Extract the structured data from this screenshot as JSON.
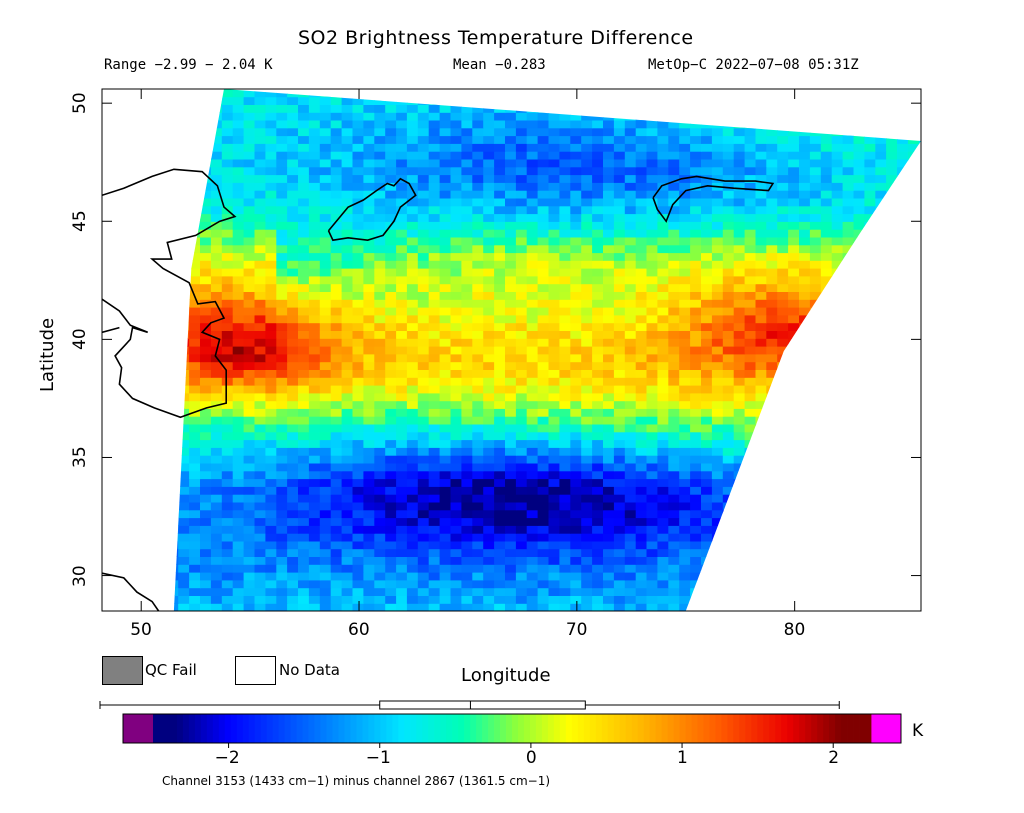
{
  "chart_data": {
    "type": "heatmap",
    "title": "SO2 Brightness Temperature Difference",
    "info": {
      "range": "Range −2.99 − 2.04 K",
      "mean": "Mean −0.283",
      "platform": "MetOp−C 2022−07−08 05:31Z"
    },
    "xlabel": "Longitude",
    "ylabel": "Latitude",
    "xlim": [
      48.2,
      85.8
    ],
    "ylim": [
      28.5,
      50.6
    ],
    "x_ticks": [
      50,
      60,
      70,
      80
    ],
    "x_tick_labels": [
      "50",
      "60",
      "70",
      "80"
    ],
    "y_ticks": [
      30,
      35,
      40,
      45,
      50
    ],
    "y_tick_labels": [
      "30",
      "35",
      "40",
      "45",
      "50"
    ],
    "swath": {
      "left_edge": [
        [
          53.8,
          50.6
        ],
        [
          52.3,
          43.0
        ],
        [
          51.5,
          28.5
        ]
      ],
      "right_edge": [
        [
          85.8,
          48.4
        ],
        [
          83.0,
          44.5
        ],
        [
          79.5,
          39.5
        ],
        [
          75.0,
          28.5
        ]
      ]
    },
    "features": [
      {
        "name": "band-north",
        "value": 0.1,
        "lat_lon": [
          [
            53,
            43.5
          ],
          [
            65,
            43.2
          ],
          [
            76,
            43.0
          ],
          [
            84,
            43.5
          ]
        ]
      },
      {
        "name": "band-main",
        "value": 0.5,
        "lat_lon": [
          [
            53,
            39.7
          ],
          [
            60,
            39.7
          ],
          [
            70,
            39.0
          ],
          [
            80,
            39.8
          ]
        ]
      },
      {
        "name": "hot-west",
        "value": 1.6,
        "lat_lon": [
          [
            53,
            39.8
          ],
          [
            57,
            39.8
          ]
        ]
      },
      {
        "name": "hot-east",
        "value": 1.5,
        "lat_lon": [
          [
            75,
            40.5
          ],
          [
            80,
            40.5
          ]
        ]
      },
      {
        "name": "cold-south",
        "value": -2.0,
        "lat_lon": [
          [
            63,
            34.0
          ],
          [
            72,
            33.0
          ]
        ]
      }
    ],
    "legend": [
      {
        "label": "QC Fail",
        "color": "#808080"
      },
      {
        "label": "No Data",
        "color": "#ffffff"
      }
    ],
    "colorbar": {
      "range": [
        -2.5,
        2.25
      ],
      "ticks": [
        -2,
        -1,
        0,
        1,
        2
      ],
      "tick_labels": [
        "−2",
        "−1",
        "0",
        "1",
        "2"
      ],
      "unit": "K",
      "under_color": "#800080",
      "over_color": "#ff00ff",
      "boxplot": {
        "min": -2.99,
        "q1": -1.0,
        "median": -0.4,
        "q3": 0.36,
        "max": 2.04
      }
    },
    "footnote": "Channel 3153 (1433 cm−1) minus channel 2867 (1361.5 cm−1)"
  }
}
